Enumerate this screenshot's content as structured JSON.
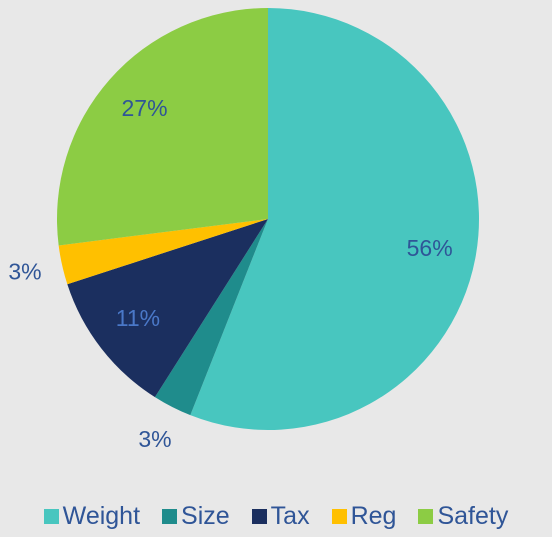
{
  "chart_data": {
    "type": "pie",
    "categories": [
      "Weight",
      "Size",
      "Tax",
      "Reg",
      "Safety"
    ],
    "values": [
      56,
      3,
      11,
      3,
      27
    ],
    "value_labels": [
      "56%",
      "3%",
      "11%",
      "3%",
      "27%"
    ],
    "colors": [
      "#48c6bf",
      "#1f8c8c",
      "#1b2f5f",
      "#ffc000",
      "#8ccc44"
    ],
    "legend": "bottom"
  }
}
